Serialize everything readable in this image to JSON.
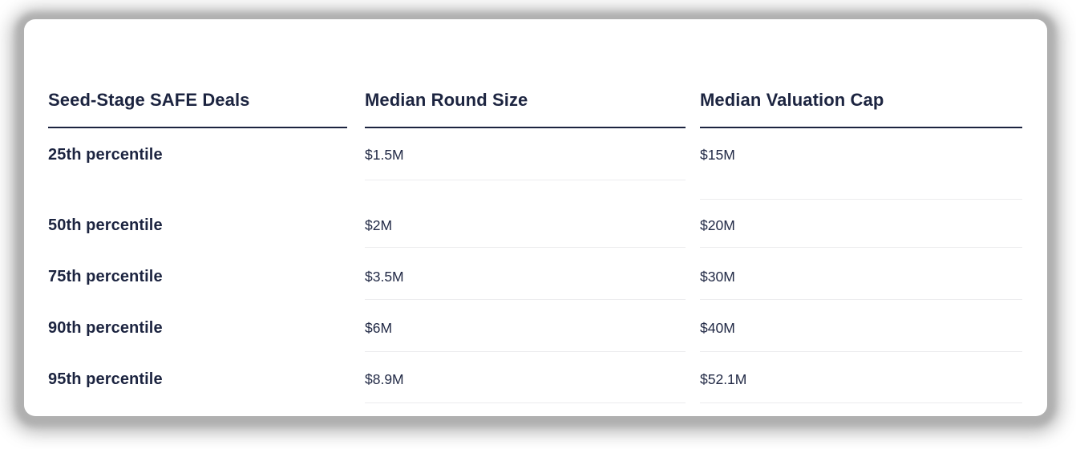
{
  "card": {
    "columns": [
      {
        "header": "Seed-Stage SAFE Deals",
        "rows": [
          "25th percentile",
          "50th percentile",
          "75th percentile",
          "90th percentile",
          "95th percentile"
        ]
      },
      {
        "header": "Median Round Size",
        "rows": [
          "$1.5M",
          "$2M",
          "$3.5M",
          "$6M",
          "$8.9M"
        ]
      },
      {
        "header": "Median Valuation Cap",
        "rows": [
          "$15M",
          "$20M",
          "$30M",
          "$40M",
          "$52.1M"
        ]
      }
    ]
  },
  "colors": {
    "text_primary": "#1c2440",
    "value_text": "#222a46",
    "header_underline": "#1c2440",
    "row_separator": "#ececee",
    "card_background": "#ffffff",
    "shadow": "#b0b0b0"
  },
  "chart_data": {
    "type": "table",
    "title": "Seed-Stage SAFE Deals",
    "columns": [
      "Seed-Stage SAFE Deals",
      "Median Round Size",
      "Median Valuation Cap"
    ],
    "rows": [
      [
        "25th percentile",
        "$1.5M",
        "$15M"
      ],
      [
        "50th percentile",
        "$2M",
        "$20M"
      ],
      [
        "75th percentile",
        "$3.5M",
        "$30M"
      ],
      [
        "90th percentile",
        "$6M",
        "$40M"
      ],
      [
        "95th percentile",
        "$8.9M",
        "$52.1M"
      ]
    ]
  }
}
